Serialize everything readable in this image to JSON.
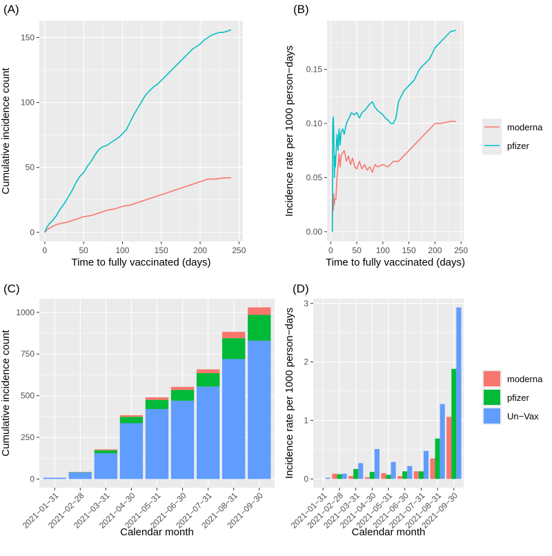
{
  "colors": {
    "moderna": "#F8766D",
    "pfizer": "#00BFC4",
    "pfizer_bar": "#00BA38",
    "unvax": "#619CFF"
  },
  "chart_data": [
    {
      "panel": "(A)",
      "type": "line",
      "title": "",
      "xlabel": "Time to fully vaccinated (days)",
      "ylabel": "Cumulative incidence count",
      "xlim": [
        -7,
        255
      ],
      "ylim": [
        -7,
        163
      ],
      "xticks": [
        0,
        50,
        100,
        150,
        200,
        250
      ],
      "yticks": [
        0,
        50,
        100,
        150
      ],
      "series": [
        {
          "name": "moderna",
          "x": [
            0,
            3,
            8,
            15,
            22,
            30,
            40,
            50,
            60,
            70,
            80,
            90,
            100,
            110,
            120,
            130,
            140,
            150,
            160,
            170,
            180,
            190,
            200,
            210,
            220,
            230,
            240
          ],
          "y": [
            0,
            2,
            4,
            6,
            7,
            8,
            10,
            12,
            13,
            15,
            17,
            18,
            20,
            21,
            23,
            25,
            27,
            29,
            31,
            33,
            35,
            37,
            39,
            41,
            41,
            42,
            42
          ]
        },
        {
          "name": "pfizer",
          "x": [
            0,
            2,
            5,
            10,
            15,
            20,
            25,
            30,
            35,
            40,
            45,
            50,
            55,
            60,
            65,
            70,
            75,
            80,
            85,
            90,
            95,
            100,
            105,
            110,
            115,
            120,
            125,
            130,
            135,
            140,
            145,
            150,
            155,
            160,
            165,
            170,
            175,
            180,
            185,
            190,
            195,
            200,
            205,
            210,
            215,
            220,
            225,
            230,
            235,
            240
          ],
          "y": [
            0,
            3,
            6,
            9,
            13,
            18,
            22,
            27,
            32,
            38,
            43,
            46,
            51,
            55,
            60,
            64,
            66,
            67,
            69,
            71,
            73,
            76,
            79,
            85,
            91,
            96,
            101,
            106,
            109,
            112,
            114,
            117,
            120,
            123,
            126,
            129,
            132,
            135,
            138,
            141,
            143,
            145,
            148,
            150,
            152,
            153,
            154,
            154,
            155,
            156
          ]
        }
      ]
    },
    {
      "panel": "(B)",
      "type": "line",
      "title": "",
      "xlabel": "Time to fully vaccinated (days)",
      "ylabel": "Incidence rate per 1000 person−days",
      "xlim": [
        -7,
        255
      ],
      "ylim": [
        -0.009,
        0.195
      ],
      "xticks": [
        0,
        50,
        100,
        150,
        200,
        250
      ],
      "yticks": [
        0.0,
        0.05,
        0.1,
        0.15
      ],
      "ytick_labels": [
        "0.00",
        "0.05",
        "0.10",
        "0.15"
      ],
      "legend": [
        "moderna",
        "pfizer"
      ],
      "legend_position": "right",
      "series": [
        {
          "name": "moderna",
          "x": [
            3,
            4,
            5,
            6,
            7,
            8,
            10,
            12,
            14,
            16,
            18,
            20,
            23,
            26,
            30,
            34,
            38,
            42,
            46,
            50,
            55,
            60,
            65,
            70,
            75,
            80,
            85,
            90,
            100,
            110,
            120,
            130,
            140,
            150,
            160,
            170,
            180,
            190,
            200,
            210,
            220,
            230,
            240
          ],
          "y": [
            0.0,
            0.03,
            0.02,
            0.035,
            0.025,
            0.03,
            0.03,
            0.05,
            0.06,
            0.072,
            0.06,
            0.07,
            0.073,
            0.075,
            0.065,
            0.07,
            0.062,
            0.068,
            0.06,
            0.058,
            0.065,
            0.058,
            0.062,
            0.057,
            0.06,
            0.055,
            0.062,
            0.06,
            0.062,
            0.06,
            0.065,
            0.065,
            0.07,
            0.075,
            0.08,
            0.085,
            0.09,
            0.095,
            0.1,
            0.1,
            0.101,
            0.102,
            0.102
          ]
        },
        {
          "name": "pfizer",
          "x": [
            3,
            4,
            5,
            6,
            7,
            8,
            9,
            10,
            12,
            14,
            16,
            18,
            20,
            23,
            26,
            30,
            35,
            40,
            45,
            50,
            55,
            60,
            65,
            70,
            75,
            80,
            85,
            90,
            95,
            100,
            105,
            110,
            115,
            120,
            125,
            130,
            140,
            150,
            160,
            170,
            180,
            190,
            200,
            210,
            220,
            230,
            240
          ],
          "y": [
            0.0,
            0.1,
            0.106,
            0.09,
            0.05,
            0.07,
            0.06,
            0.07,
            0.09,
            0.075,
            0.095,
            0.08,
            0.092,
            0.095,
            0.09,
            0.1,
            0.105,
            0.11,
            0.108,
            0.11,
            0.105,
            0.11,
            0.112,
            0.115,
            0.118,
            0.12,
            0.115,
            0.112,
            0.11,
            0.108,
            0.105,
            0.103,
            0.1,
            0.1,
            0.105,
            0.12,
            0.13,
            0.135,
            0.14,
            0.15,
            0.155,
            0.16,
            0.17,
            0.175,
            0.18,
            0.185,
            0.186
          ]
        }
      ]
    },
    {
      "panel": "(C)",
      "type": "bar",
      "stacked": true,
      "title": "",
      "xlabel": "Calendar month",
      "ylabel": "Cumulative incidence count",
      "ylim": [
        -52,
        1082
      ],
      "yticks": [
        0,
        250,
        500,
        750,
        1000
      ],
      "categories": [
        "2021−01−31",
        "2021−02−28",
        "2021−03−31",
        "2021−04−30",
        "2021−05−31",
        "2021−06−30",
        "2021−07−31",
        "2021−08−31",
        "2021−09−30"
      ],
      "series": [
        {
          "name": "Un−Vax",
          "values": [
            8,
            40,
            155,
            335,
            420,
            470,
            555,
            720,
            830
          ]
        },
        {
          "name": "pfizer",
          "values": [
            0,
            2,
            18,
            38,
            55,
            65,
            80,
            125,
            155
          ]
        },
        {
          "name": "moderna",
          "values": [
            0,
            1,
            5,
            10,
            15,
            18,
            23,
            38,
            45
          ]
        }
      ]
    },
    {
      "panel": "(D)",
      "type": "bar",
      "stacked": false,
      "title": "",
      "xlabel": "Calendar month",
      "ylabel": "Incidence rate per 1000 person−days",
      "ylim": [
        -0.15,
        3.08
      ],
      "yticks": [
        0,
        1,
        2,
        3
      ],
      "legend": [
        "moderna",
        "pfizer",
        "Un−Vax"
      ],
      "legend_position": "right",
      "categories": [
        "2021−01−31",
        "2021−02−28",
        "2021−03−31",
        "2021−04−30",
        "2021−05−31",
        "2021−06−30",
        "2021−07−31",
        "2021−08−31",
        "2021−09−30"
      ],
      "series": [
        {
          "name": "moderna",
          "values": [
            0.0,
            0.09,
            0.05,
            0.03,
            0.1,
            0.05,
            0.13,
            0.35,
            1.06
          ]
        },
        {
          "name": "pfizer",
          "values": [
            0.0,
            0.08,
            0.17,
            0.12,
            0.07,
            0.13,
            0.13,
            0.69,
            1.88
          ]
        },
        {
          "name": "Un−Vax",
          "values": [
            0.02,
            0.09,
            0.27,
            0.51,
            0.29,
            0.22,
            0.48,
            1.28,
            2.93
          ]
        }
      ]
    }
  ]
}
